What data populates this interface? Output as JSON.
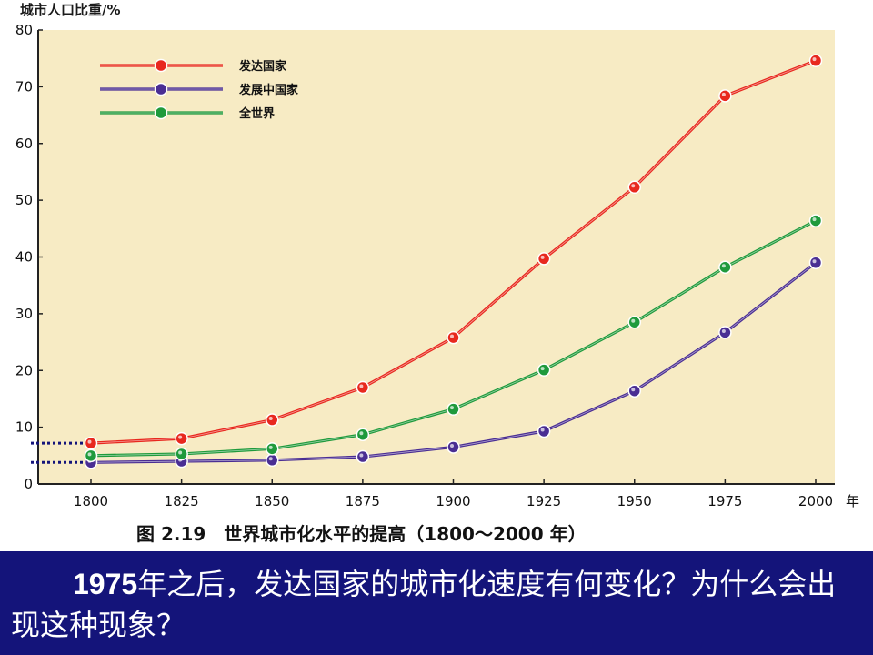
{
  "slide": {
    "question_year": "1975",
    "question_text": "年之后，发达国家的城市化速度有何变化？为什么会出现这种现象？",
    "panel_color": "#14147a"
  },
  "chart_data": {
    "type": "line",
    "ylabel": "城市人口比重/%",
    "x_unit": "年",
    "caption": "图 2.19　世界城市化水平的提高（1800～2000 年）",
    "x": [
      1800,
      1825,
      1850,
      1875,
      1900,
      1925,
      1950,
      1975,
      2000
    ],
    "ylim": [
      0,
      80
    ],
    "yticks": [
      0,
      10,
      20,
      30,
      40,
      50,
      60,
      70,
      80
    ],
    "grid": false,
    "legend_position": "top-left",
    "plot_background": "#f7ebc4",
    "series": [
      {
        "name": "发达国家",
        "color": "#e8281e",
        "values": [
          7.2,
          8,
          11.3,
          17,
          25.8,
          39.7,
          52.3,
          68.4,
          74.6
        ]
      },
      {
        "name": "发展中国家",
        "color": "#4a2e93",
        "values": [
          3.8,
          4,
          4.2,
          4.8,
          6.5,
          9.3,
          16.4,
          26.7,
          39
        ]
      },
      {
        "name": "全世界",
        "color": "#1f9a3c",
        "values": [
          5,
          5.3,
          6.2,
          8.7,
          13.2,
          20.1,
          28.5,
          38.2,
          46.4
        ]
      }
    ],
    "dotted_guides": [
      7.2,
      3.8
    ]
  }
}
